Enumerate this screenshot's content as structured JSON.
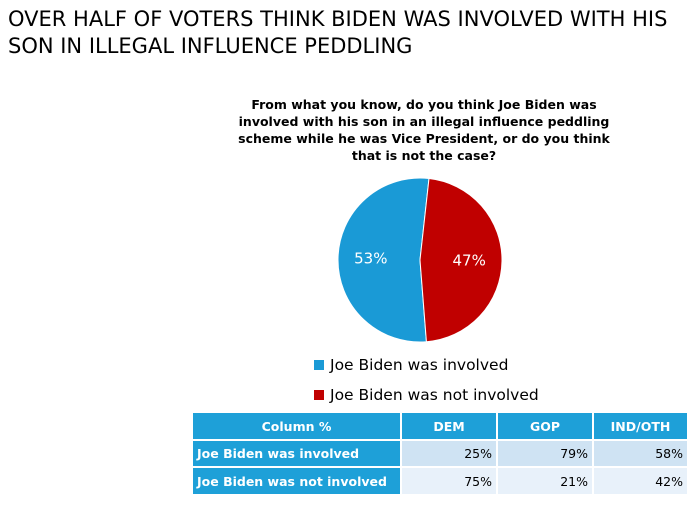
{
  "title": "OVER HALF OF VOTERS THINK BIDEN WAS INVOLVED WITH HIS SON IN ILLEGAL INFLUENCE PEDDLING",
  "colors": {
    "involved": "#1a9ad6",
    "not_involved": "#c00000",
    "table_header": "#1ea0d8"
  },
  "chart_data": {
    "type": "pie",
    "title": "From what you know, do you think Joe Biden was involved with his son in an illegal influence peddling scheme while he was Vice President, or do you think that is not the case?",
    "slices": [
      {
        "label": "Joe Biden was involved",
        "value": 53,
        "display": "53%",
        "color": "#1a9ad6"
      },
      {
        "label": "Joe Biden was not involved",
        "value": 47,
        "display": "47%",
        "color": "#c00000"
      }
    ],
    "legend_position": "bottom"
  },
  "table": {
    "headers": [
      "Column %",
      "DEM",
      "GOP",
      "IND/OTH"
    ],
    "rows": [
      {
        "label": "Joe Biden was involved",
        "values": [
          "25%",
          "79%",
          "58%"
        ]
      },
      {
        "label": "Joe Biden was not involved",
        "values": [
          "75%",
          "21%",
          "42%"
        ]
      }
    ]
  }
}
